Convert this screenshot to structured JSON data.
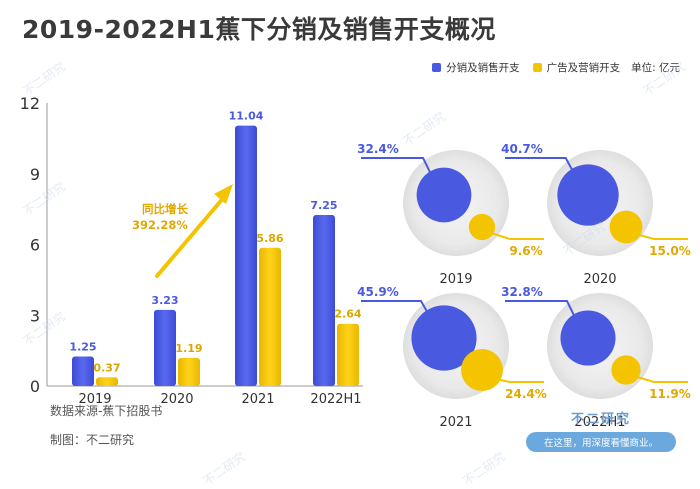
{
  "title": "2019-2022H1蕉下分销及销售开支概况",
  "legend": {
    "items": [
      {
        "label": "分销及销售开支",
        "color": "#4a5ae0"
      },
      {
        "label": "广告及营销开支",
        "color": "#f5c400"
      }
    ],
    "unit": "单位: 亿元"
  },
  "annotation": {
    "line1": "同比增长",
    "line2": "392.28%"
  },
  "footer": {
    "source": "数据来源-蕉下招股书",
    "maker": "制图：不二研究"
  },
  "brand": {
    "name": "不二研究",
    "slogan": "在这里，用深度看懂商业。",
    "watermark": "不二研究"
  },
  "colors": {
    "blue": "#4a5ae0",
    "yellow": "#f5c400",
    "circle_bg": "#e6e6e6"
  },
  "chart_data": [
    {
      "type": "bar",
      "categories": [
        "2019",
        "2020",
        "2021",
        "2022H1"
      ],
      "series": [
        {
          "name": "分销及销售开支",
          "values": [
            1.25,
            3.23,
            11.04,
            7.25
          ]
        },
        {
          "name": "广告及营销开支",
          "values": [
            0.37,
            1.19,
            5.86,
            2.64
          ]
        }
      ],
      "ylim": [
        0,
        12
      ],
      "yticks": [
        0,
        3,
        6,
        9,
        12
      ],
      "title": "",
      "xlabel": "",
      "ylabel": ""
    },
    {
      "type": "bubble",
      "categories": [
        "2019",
        "2020",
        "2021",
        "2022H1"
      ],
      "series": [
        {
          "name": "分销及销售开支占比",
          "labels": [
            "32.4%",
            "40.7%",
            "45.9%",
            "32.8%"
          ],
          "values": [
            32.4,
            40.7,
            45.9,
            32.8
          ]
        },
        {
          "name": "广告及营销开支占比",
          "labels": [
            "9.6%",
            "15.0%",
            "24.4%",
            "11.9%"
          ],
          "values": [
            9.6,
            15.0,
            24.4,
            11.9
          ]
        }
      ]
    }
  ]
}
